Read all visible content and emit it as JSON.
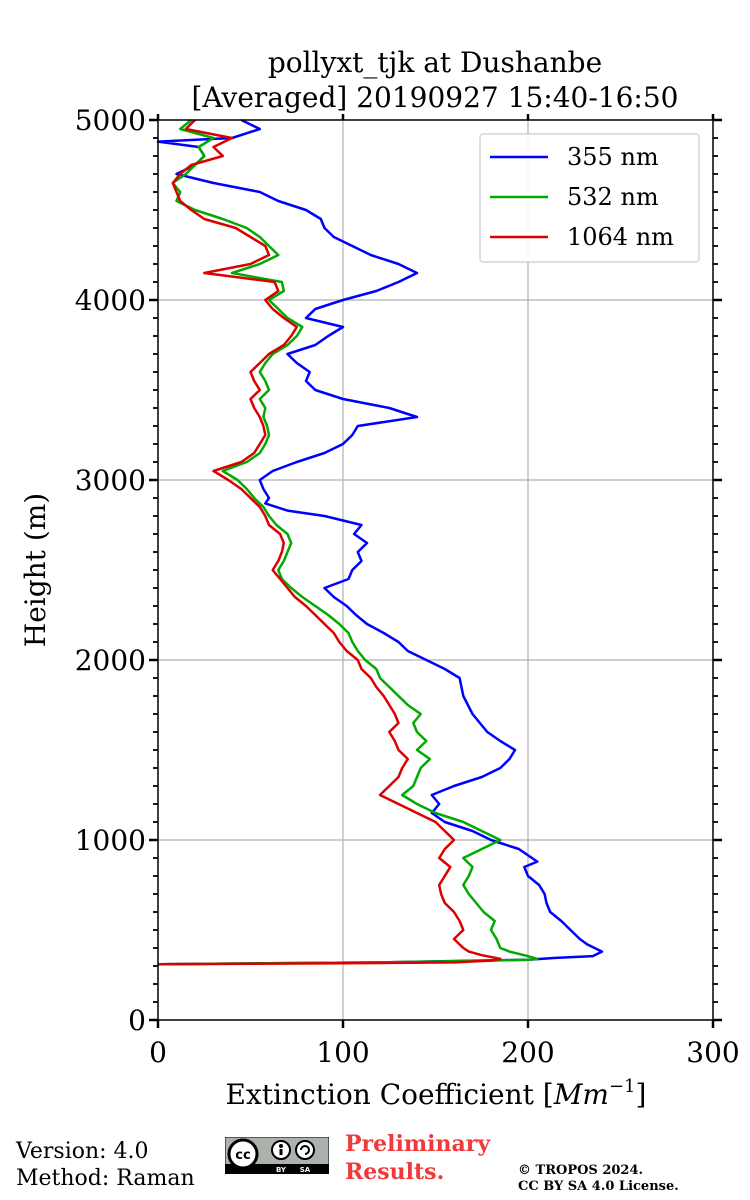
{
  "chart_data": {
    "type": "line",
    "title_line1": "pollyxt_tjk at Dushanbe",
    "title_line2": "[Averaged] 20190927 15:40-16:50",
    "xlabel_text": "Extinction Coefficient [",
    "xlabel_unit": "Mm",
    "xlabel_exp": "−1",
    "xlabel_close": "]",
    "ylabel": "Height (m)",
    "xlim": [
      0,
      300
    ],
    "ylim": [
      0,
      5000
    ],
    "x_ticks": [
      0,
      100,
      200,
      300
    ],
    "x_tick_labels": [
      "0",
      "100",
      "200",
      "300"
    ],
    "y_ticks": [
      0,
      1000,
      2000,
      3000,
      4000,
      5000
    ],
    "y_tick_labels": [
      "0",
      "1000",
      "2000",
      "3000",
      "4000",
      "5000"
    ],
    "grid": true,
    "legend_position": "top-right",
    "series": [
      {
        "name": "355 nm",
        "color": "#0000ff",
        "points": [
          [
            0,
            310
          ],
          [
            120,
            320
          ],
          [
            200,
            335
          ],
          [
            215,
            345
          ],
          [
            235,
            355
          ],
          [
            240,
            380
          ],
          [
            236,
            400
          ],
          [
            232,
            420
          ],
          [
            228,
            450
          ],
          [
            223,
            500
          ],
          [
            218,
            550
          ],
          [
            212,
            600
          ],
          [
            210,
            650
          ],
          [
            209,
            700
          ],
          [
            206,
            750
          ],
          [
            200,
            800
          ],
          [
            198,
            850
          ],
          [
            205,
            880
          ],
          [
            195,
            950
          ],
          [
            180,
            1000
          ],
          [
            170,
            1050
          ],
          [
            155,
            1100
          ],
          [
            148,
            1150
          ],
          [
            152,
            1200
          ],
          [
            148,
            1250
          ],
          [
            160,
            1300
          ],
          [
            175,
            1350
          ],
          [
            185,
            1400
          ],
          [
            190,
            1450
          ],
          [
            193,
            1500
          ],
          [
            185,
            1550
          ],
          [
            178,
            1600
          ],
          [
            170,
            1700
          ],
          [
            165,
            1800
          ],
          [
            163,
            1900
          ],
          [
            155,
            1950
          ],
          [
            145,
            2000
          ],
          [
            135,
            2050
          ],
          [
            130,
            2100
          ],
          [
            122,
            2150
          ],
          [
            113,
            2200
          ],
          [
            107,
            2250
          ],
          [
            102,
            2300
          ],
          [
            95,
            2350
          ],
          [
            90,
            2400
          ],
          [
            103,
            2450
          ],
          [
            105,
            2500
          ],
          [
            110,
            2550
          ],
          [
            108,
            2600
          ],
          [
            113,
            2650
          ],
          [
            106,
            2700
          ],
          [
            110,
            2750
          ],
          [
            90,
            2800
          ],
          [
            70,
            2830
          ],
          [
            58,
            2870
          ],
          [
            60,
            2900
          ],
          [
            57,
            2950
          ],
          [
            55,
            3000
          ],
          [
            62,
            3050
          ],
          [
            75,
            3100
          ],
          [
            90,
            3150
          ],
          [
            100,
            3200
          ],
          [
            105,
            3250
          ],
          [
            108,
            3300
          ],
          [
            140,
            3350
          ],
          [
            125,
            3400
          ],
          [
            100,
            3450
          ],
          [
            85,
            3500
          ],
          [
            80,
            3550
          ],
          [
            82,
            3600
          ],
          [
            75,
            3650
          ],
          [
            70,
            3700
          ],
          [
            85,
            3750
          ],
          [
            92,
            3800
          ],
          [
            100,
            3850
          ],
          [
            80,
            3900
          ],
          [
            85,
            3950
          ],
          [
            100,
            4000
          ],
          [
            118,
            4050
          ],
          [
            130,
            4100
          ],
          [
            140,
            4150
          ],
          [
            130,
            4200
          ],
          [
            115,
            4250
          ],
          [
            105,
            4300
          ],
          [
            95,
            4350
          ],
          [
            90,
            4400
          ],
          [
            88,
            4450
          ],
          [
            80,
            4500
          ],
          [
            65,
            4550
          ],
          [
            55,
            4600
          ],
          [
            30,
            4650
          ],
          [
            10,
            4700
          ],
          [
            20,
            4750
          ],
          [
            25,
            4800
          ],
          [
            22,
            4850
          ],
          [
            0,
            4880
          ],
          [
            40,
            4900
          ],
          [
            55,
            4950
          ],
          [
            45,
            5000
          ]
        ]
      },
      {
        "name": "532 nm",
        "color": "#00aa00",
        "points": [
          [
            0,
            310
          ],
          [
            120,
            320
          ],
          [
            180,
            330
          ],
          [
            200,
            335
          ],
          [
            205,
            340
          ],
          [
            198,
            360
          ],
          [
            190,
            380
          ],
          [
            185,
            400
          ],
          [
            183,
            450
          ],
          [
            180,
            500
          ],
          [
            182,
            550
          ],
          [
            176,
            600
          ],
          [
            172,
            650
          ],
          [
            168,
            700
          ],
          [
            165,
            750
          ],
          [
            168,
            800
          ],
          [
            170,
            850
          ],
          [
            165,
            900
          ],
          [
            175,
            950
          ],
          [
            185,
            1000
          ],
          [
            175,
            1050
          ],
          [
            165,
            1100
          ],
          [
            150,
            1150
          ],
          [
            140,
            1200
          ],
          [
            132,
            1250
          ],
          [
            138,
            1300
          ],
          [
            140,
            1350
          ],
          [
            142,
            1400
          ],
          [
            147,
            1450
          ],
          [
            140,
            1500
          ],
          [
            145,
            1550
          ],
          [
            140,
            1600
          ],
          [
            138,
            1650
          ],
          [
            142,
            1700
          ],
          [
            135,
            1750
          ],
          [
            130,
            1800
          ],
          [
            125,
            1850
          ],
          [
            120,
            1900
          ],
          [
            118,
            1950
          ],
          [
            112,
            2000
          ],
          [
            108,
            2050
          ],
          [
            105,
            2100
          ],
          [
            103,
            2150
          ],
          [
            98,
            2200
          ],
          [
            92,
            2250
          ],
          [
            85,
            2300
          ],
          [
            78,
            2350
          ],
          [
            72,
            2400
          ],
          [
            67,
            2450
          ],
          [
            65,
            2500
          ],
          [
            68,
            2550
          ],
          [
            70,
            2600
          ],
          [
            72,
            2650
          ],
          [
            70,
            2700
          ],
          [
            64,
            2750
          ],
          [
            60,
            2800
          ],
          [
            57,
            2850
          ],
          [
            52,
            2900
          ],
          [
            48,
            2950
          ],
          [
            43,
            3000
          ],
          [
            35,
            3050
          ],
          [
            48,
            3100
          ],
          [
            55,
            3150
          ],
          [
            58,
            3200
          ],
          [
            60,
            3250
          ],
          [
            59,
            3300
          ],
          [
            57,
            3350
          ],
          [
            58,
            3400
          ],
          [
            55,
            3450
          ],
          [
            60,
            3500
          ],
          [
            58,
            3550
          ],
          [
            55,
            3600
          ],
          [
            58,
            3650
          ],
          [
            62,
            3700
          ],
          [
            70,
            3750
          ],
          [
            75,
            3800
          ],
          [
            78,
            3850
          ],
          [
            70,
            3900
          ],
          [
            65,
            3950
          ],
          [
            60,
            4000
          ],
          [
            68,
            4050
          ],
          [
            67,
            4100
          ],
          [
            40,
            4150
          ],
          [
            55,
            4200
          ],
          [
            65,
            4250
          ],
          [
            60,
            4300
          ],
          [
            55,
            4350
          ],
          [
            48,
            4400
          ],
          [
            35,
            4450
          ],
          [
            20,
            4500
          ],
          [
            10,
            4550
          ],
          [
            12,
            4600
          ],
          [
            8,
            4650
          ],
          [
            15,
            4700
          ],
          [
            20,
            4750
          ],
          [
            25,
            4800
          ],
          [
            22,
            4850
          ],
          [
            30,
            4900
          ],
          [
            12,
            4950
          ],
          [
            18,
            5000
          ]
        ]
      },
      {
        "name": "1064 nm",
        "color": "#dd0000",
        "points": [
          [
            0,
            310
          ],
          [
            100,
            315
          ],
          [
            160,
            320
          ],
          [
            180,
            330
          ],
          [
            185,
            340
          ],
          [
            175,
            360
          ],
          [
            168,
            380
          ],
          [
            165,
            400
          ],
          [
            160,
            450
          ],
          [
            165,
            500
          ],
          [
            163,
            550
          ],
          [
            160,
            600
          ],
          [
            155,
            650
          ],
          [
            153,
            700
          ],
          [
            152,
            750
          ],
          [
            155,
            800
          ],
          [
            158,
            850
          ],
          [
            152,
            900
          ],
          [
            155,
            950
          ],
          [
            160,
            1000
          ],
          [
            155,
            1050
          ],
          [
            150,
            1100
          ],
          [
            140,
            1150
          ],
          [
            130,
            1200
          ],
          [
            120,
            1250
          ],
          [
            125,
            1300
          ],
          [
            130,
            1350
          ],
          [
            132,
            1400
          ],
          [
            135,
            1450
          ],
          [
            130,
            1500
          ],
          [
            128,
            1550
          ],
          [
            125,
            1600
          ],
          [
            130,
            1650
          ],
          [
            128,
            1700
          ],
          [
            125,
            1750
          ],
          [
            122,
            1800
          ],
          [
            118,
            1850
          ],
          [
            115,
            1900
          ],
          [
            110,
            1950
          ],
          [
            108,
            2000
          ],
          [
            102,
            2050
          ],
          [
            98,
            2100
          ],
          [
            95,
            2150
          ],
          [
            90,
            2200
          ],
          [
            85,
            2250
          ],
          [
            80,
            2300
          ],
          [
            74,
            2350
          ],
          [
            70,
            2400
          ],
          [
            66,
            2450
          ],
          [
            62,
            2500
          ],
          [
            65,
            2550
          ],
          [
            67,
            2600
          ],
          [
            68,
            2650
          ],
          [
            66,
            2700
          ],
          [
            60,
            2750
          ],
          [
            58,
            2800
          ],
          [
            55,
            2850
          ],
          [
            50,
            2900
          ],
          [
            45,
            2950
          ],
          [
            38,
            3000
          ],
          [
            30,
            3050
          ],
          [
            45,
            3100
          ],
          [
            52,
            3150
          ],
          [
            55,
            3200
          ],
          [
            58,
            3250
          ],
          [
            57,
            3300
          ],
          [
            55,
            3350
          ],
          [
            52,
            3400
          ],
          [
            50,
            3450
          ],
          [
            55,
            3500
          ],
          [
            52,
            3550
          ],
          [
            50,
            3600
          ],
          [
            55,
            3650
          ],
          [
            60,
            3700
          ],
          [
            68,
            3750
          ],
          [
            72,
            3800
          ],
          [
            75,
            3850
          ],
          [
            68,
            3900
          ],
          [
            62,
            3950
          ],
          [
            58,
            4000
          ],
          [
            65,
            4050
          ],
          [
            63,
            4100
          ],
          [
            25,
            4150
          ],
          [
            50,
            4200
          ],
          [
            60,
            4250
          ],
          [
            58,
            4300
          ],
          [
            50,
            4350
          ],
          [
            42,
            4400
          ],
          [
            25,
            4450
          ],
          [
            18,
            4500
          ],
          [
            12,
            4550
          ],
          [
            10,
            4600
          ],
          [
            8,
            4650
          ],
          [
            12,
            4700
          ],
          [
            18,
            4750
          ],
          [
            35,
            4800
          ],
          [
            30,
            4850
          ],
          [
            40,
            4900
          ],
          [
            15,
            4950
          ],
          [
            20,
            5000
          ]
        ]
      }
    ]
  },
  "footer": {
    "version": "Version: 4.0",
    "method": "Method: Raman",
    "preliminary_line1": "Preliminary",
    "preliminary_line2": "Results.",
    "copyright_line1": "© TROPOS 2024.",
    "copyright_line2": "CC BY SA 4.0 License.",
    "cc_badge_icon": "cc-by-sa-license-icon",
    "cc_badge_by": "BY",
    "cc_badge_sa": "SA"
  }
}
